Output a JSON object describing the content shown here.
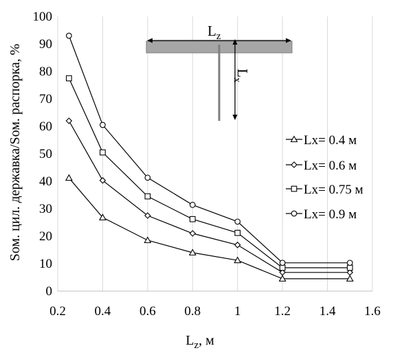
{
  "chart_data": {
    "type": "line",
    "xlabel_main": "L",
    "xlabel_sub": "z",
    "xlabel_unit": ", м",
    "ylabel": "Sом. цил. державка/Sом. распорка, %",
    "xlim": [
      0.2,
      1.6
    ],
    "ylim": [
      0,
      100
    ],
    "x_ticks": [
      "0.2",
      "0.4",
      "0.6",
      "0.8",
      "1",
      "1.2",
      "1.4",
      "1.6"
    ],
    "y_ticks": [
      "0",
      "10",
      "20",
      "30",
      "40",
      "50",
      "60",
      "70",
      "80",
      "90",
      "100"
    ],
    "grid": "vertical",
    "legend_position": "right",
    "x": [
      0.25,
      0.4,
      0.6,
      0.8,
      1.0,
      1.2,
      1.5
    ],
    "series": [
      {
        "name": "Lx= 0.4 м",
        "marker": "triangle",
        "values": [
          41.2,
          26.8,
          18.5,
          14.0,
          11.2,
          4.5,
          4.5
        ]
      },
      {
        "name": "Lx= 0.6 м",
        "marker": "diamond",
        "values": [
          62.0,
          40.3,
          27.5,
          21.0,
          16.8,
          6.8,
          6.8
        ]
      },
      {
        "name": "Lx= 0.75 м",
        "marker": "square",
        "values": [
          77.5,
          50.5,
          34.5,
          26.2,
          21.2,
          8.5,
          8.5
        ]
      },
      {
        "name": "Lx= 0.9 м",
        "marker": "circle",
        "values": [
          93.0,
          60.5,
          41.3,
          31.4,
          25.3,
          10.3,
          10.3
        ]
      }
    ],
    "inset": {
      "horizontal_label_main": "L",
      "horizontal_label_sub": "z",
      "vertical_label_main": "L",
      "vertical_label_sub": "x"
    }
  }
}
